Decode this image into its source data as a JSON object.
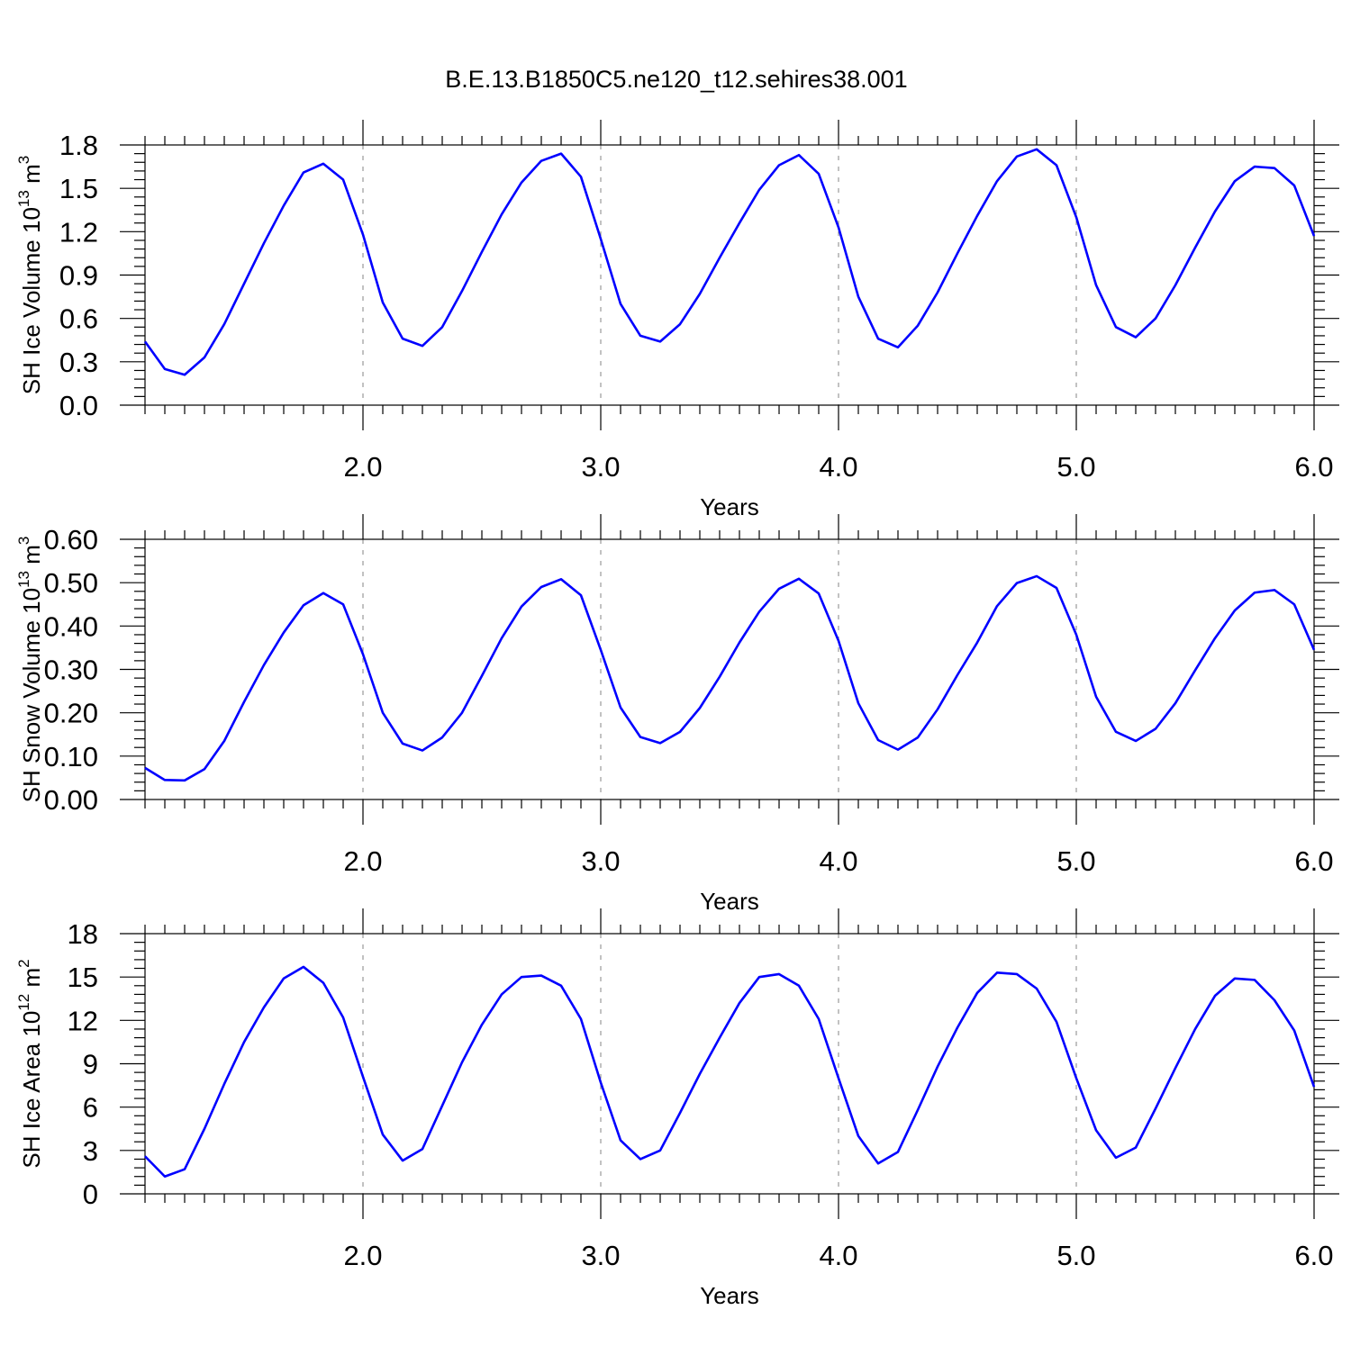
{
  "title": "B.E.13.B1850C5.ne120_t12.sehires38.001",
  "line_color": "#0000ff",
  "chart_data": [
    {
      "type": "line",
      "title": "B.E.13.B1850C5.ne120_t12.sehires38.001",
      "xlabel": "Years",
      "ylabel_parts": [
        "SH Ice Volume 10",
        "13",
        " m",
        "3"
      ],
      "xlim": [
        1.0833,
        6.0
      ],
      "ylim": [
        0,
        1.8
      ],
      "xticks": [
        2.0,
        3.0,
        4.0,
        5.0,
        6.0
      ],
      "xtick_labels": [
        "2.0",
        "3.0",
        "4.0",
        "5.0",
        "6.0"
      ],
      "yticks": [
        0,
        0.3,
        0.6,
        0.9,
        1.2,
        1.5,
        1.8
      ],
      "ytick_labels": [
        "0.0",
        "0.3",
        "0.6",
        "0.9",
        "1.2",
        "1.5",
        "1.8"
      ],
      "grid": "vertical dashed at major x ticks",
      "series": [
        {
          "name": "SH Ice Volume",
          "values": [
            0.44,
            0.25,
            0.21,
            0.33,
            0.56,
            0.84,
            1.12,
            1.38,
            1.61,
            1.67,
            1.56,
            1.18,
            0.71,
            0.46,
            0.41,
            0.54,
            0.79,
            1.06,
            1.32,
            1.54,
            1.69,
            1.74,
            1.58,
            1.15,
            0.7,
            0.48,
            0.44,
            0.56,
            0.77,
            1.02,
            1.26,
            1.49,
            1.66,
            1.73,
            1.6,
            1.23,
            0.75,
            0.46,
            0.4,
            0.55,
            0.78,
            1.05,
            1.31,
            1.55,
            1.72,
            1.77,
            1.66,
            1.3,
            0.83,
            0.54,
            0.47,
            0.6,
            0.83,
            1.09,
            1.34,
            1.55,
            1.65,
            1.64,
            1.52,
            1.17
          ]
        }
      ]
    },
    {
      "type": "line",
      "xlabel": "Years",
      "ylabel_parts": [
        "SH Snow Volume 10",
        "13",
        " m",
        "3"
      ],
      "xlim": [
        1.0833,
        6.0
      ],
      "ylim": [
        0,
        0.6
      ],
      "xticks": [
        2.0,
        3.0,
        4.0,
        5.0,
        6.0
      ],
      "xtick_labels": [
        "2.0",
        "3.0",
        "4.0",
        "5.0",
        "6.0"
      ],
      "yticks": [
        0,
        0.1,
        0.2,
        0.3,
        0.4,
        0.5,
        0.6
      ],
      "ytick_labels": [
        "0.00",
        "0.10",
        "0.20",
        "0.30",
        "0.40",
        "0.50",
        "0.60"
      ],
      "grid": "vertical dashed at major x ticks",
      "series": [
        {
          "name": "SH Snow Volume",
          "values": [
            0.073,
            0.045,
            0.044,
            0.07,
            0.135,
            0.225,
            0.31,
            0.385,
            0.448,
            0.476,
            0.45,
            0.335,
            0.2,
            0.129,
            0.113,
            0.143,
            0.2,
            0.285,
            0.372,
            0.445,
            0.49,
            0.508,
            0.471,
            0.345,
            0.212,
            0.144,
            0.13,
            0.156,
            0.211,
            0.283,
            0.362,
            0.433,
            0.486,
            0.509,
            0.475,
            0.366,
            0.222,
            0.137,
            0.115,
            0.143,
            0.208,
            0.287,
            0.362,
            0.446,
            0.499,
            0.515,
            0.488,
            0.38,
            0.237,
            0.156,
            0.135,
            0.163,
            0.222,
            0.298,
            0.372,
            0.436,
            0.477,
            0.483,
            0.45,
            0.345
          ]
        }
      ]
    },
    {
      "type": "line",
      "xlabel": "Years",
      "ylabel_parts": [
        "SH Ice Area 10",
        "12",
        " m",
        "2"
      ],
      "xlim": [
        1.0833,
        6.0
      ],
      "ylim": [
        0,
        18
      ],
      "xticks": [
        2.0,
        3.0,
        4.0,
        5.0,
        6.0
      ],
      "xtick_labels": [
        "2.0",
        "3.0",
        "4.0",
        "5.0",
        "6.0"
      ],
      "yticks": [
        0,
        3,
        6,
        9,
        12,
        15,
        18
      ],
      "ytick_labels": [
        "0",
        "3",
        "6",
        "9",
        "12",
        "15",
        "18"
      ],
      "grid": "vertical dashed at major x ticks",
      "series": [
        {
          "name": "SH Ice Area",
          "values": [
            2.6,
            1.2,
            1.7,
            4.5,
            7.6,
            10.5,
            12.9,
            14.9,
            15.7,
            14.6,
            12.2,
            8.1,
            4.1,
            2.3,
            3.1,
            6.1,
            9.1,
            11.7,
            13.8,
            15.0,
            15.1,
            14.4,
            12.1,
            7.7,
            3.7,
            2.4,
            3.0,
            5.6,
            8.3,
            10.8,
            13.2,
            15.0,
            15.2,
            14.4,
            12.1,
            8.0,
            4.0,
            2.1,
            2.9,
            5.8,
            8.8,
            11.5,
            13.9,
            15.3,
            15.2,
            14.2,
            11.9,
            8.0,
            4.4,
            2.5,
            3.2,
            5.9,
            8.7,
            11.4,
            13.7,
            14.9,
            14.8,
            13.4,
            11.3,
            7.4
          ]
        }
      ]
    }
  ]
}
